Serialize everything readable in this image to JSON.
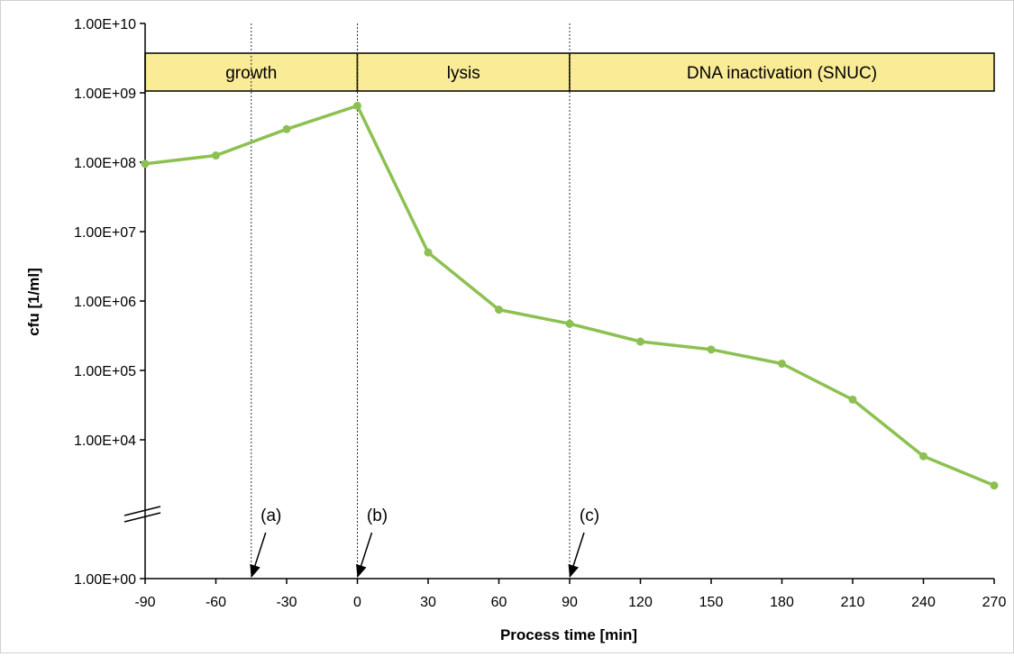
{
  "chart_data": {
    "type": "line",
    "xlabel": "Process time [min]",
    "ylabel": "cfu [1/ml]",
    "x_ticks": [
      -90,
      -60,
      -30,
      0,
      30,
      60,
      90,
      120,
      150,
      180,
      210,
      240,
      270
    ],
    "xlim": [
      -90,
      270
    ],
    "y_ticks": [
      "1.00E+10",
      "1.00E+09",
      "1.00E+08",
      "1.00E+07",
      "1.00E+06",
      "1.00E+05",
      "1.00E+04",
      "1.00E+00"
    ],
    "y_scale": "log (broken axis between 1.00E+04 and 1.00E+00)",
    "grid": false,
    "series": [
      {
        "color": "#8cc152",
        "x": [
          -90,
          -60,
          -30,
          0,
          30,
          60,
          90,
          120,
          150,
          180,
          210,
          240,
          270
        ],
        "y": [
          95000000,
          125000000,
          300000000,
          650000000,
          5000000,
          750000,
          470000,
          260000,
          200000,
          125000,
          38000,
          5800,
          2200
        ]
      }
    ],
    "phases": [
      {
        "label": "growth",
        "x_start": -90,
        "x_end": 0
      },
      {
        "label": "lysis",
        "x_start": 0,
        "x_end": 90
      },
      {
        "label": "DNA inactivation (SNUC)",
        "x_start": 90,
        "x_end": 270
      }
    ],
    "phase_color": "#faeb96",
    "markers": [
      {
        "label": "(a)",
        "x": -45
      },
      {
        "label": "(b)",
        "x": 0
      },
      {
        "label": "(c)",
        "x": 90
      }
    ]
  }
}
